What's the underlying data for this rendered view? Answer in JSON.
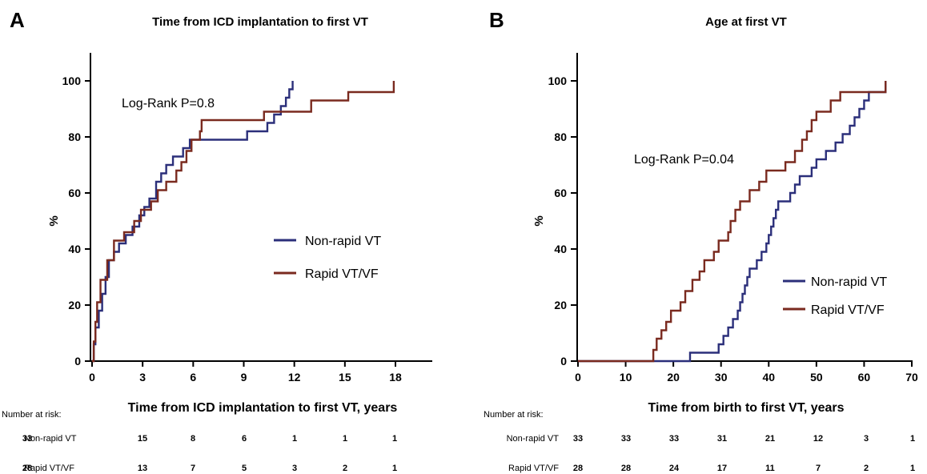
{
  "chart_data": [
    {
      "type": "line",
      "panel_label": "A",
      "title": "Time from ICD implantation to first VT",
      "xlabel": "Time from ICD implantation to first VT, years",
      "ylabel": "%",
      "xlim": [
        0,
        18
      ],
      "ylim": [
        0,
        100
      ],
      "xticks": [
        0,
        3,
        6,
        9,
        12,
        15,
        18
      ],
      "yticks": [
        0,
        20,
        40,
        60,
        80,
        100
      ],
      "grid": false,
      "legend_position": "center-right",
      "annotation": "Log-Rank P=0.8",
      "series": [
        {
          "name": "Non-rapid VT",
          "color": "#2b2f7a",
          "points": [
            [
              0,
              0
            ],
            [
              0.1,
              6
            ],
            [
              0.2,
              12
            ],
            [
              0.4,
              18
            ],
            [
              0.6,
              24
            ],
            [
              0.8,
              30
            ],
            [
              1.0,
              36
            ],
            [
              1.3,
              39
            ],
            [
              1.6,
              42
            ],
            [
              2.0,
              45
            ],
            [
              2.4,
              48
            ],
            [
              2.8,
              52
            ],
            [
              3.1,
              55
            ],
            [
              3.4,
              58
            ],
            [
              3.8,
              64
            ],
            [
              4.1,
              67
            ],
            [
              4.4,
              70
            ],
            [
              4.8,
              73
            ],
            [
              5.4,
              76
            ],
            [
              5.8,
              79
            ],
            [
              6.6,
              79
            ],
            [
              9.2,
              82
            ],
            [
              10.4,
              85
            ],
            [
              10.8,
              88
            ],
            [
              11.2,
              91
            ],
            [
              11.5,
              94
            ],
            [
              11.7,
              97
            ],
            [
              11.9,
              100
            ]
          ]
        },
        {
          "name": "Rapid VT/VF",
          "color": "#7a2a1f",
          "points": [
            [
              0,
              0
            ],
            [
              0.1,
              7
            ],
            [
              0.2,
              14
            ],
            [
              0.3,
              21
            ],
            [
              0.5,
              29
            ],
            [
              0.9,
              36
            ],
            [
              1.3,
              43
            ],
            [
              1.9,
              46
            ],
            [
              2.5,
              50
            ],
            [
              2.9,
              54
            ],
            [
              3.5,
              57
            ],
            [
              3.9,
              61
            ],
            [
              4.4,
              64
            ],
            [
              5.0,
              68
            ],
            [
              5.3,
              71
            ],
            [
              5.6,
              75
            ],
            [
              5.9,
              79
            ],
            [
              6.4,
              82
            ],
            [
              6.5,
              86
            ],
            [
              9.2,
              86
            ],
            [
              10.2,
              89
            ],
            [
              13.0,
              93
            ],
            [
              15.2,
              96
            ],
            [
              17.9,
              100
            ]
          ]
        }
      ],
      "risk_table": {
        "header": "Number at risk:",
        "times": [
          0,
          3,
          6,
          9,
          12,
          15,
          18
        ],
        "rows": [
          {
            "name": "Non-rapid VT",
            "values": [
              "33",
              "15",
              "8",
              "6",
              "1",
              "1",
              "1"
            ]
          },
          {
            "name": "Rapid VT/VF",
            "values": [
              "28",
              "13",
              "7",
              "5",
              "3",
              "2",
              "1"
            ]
          }
        ]
      }
    },
    {
      "type": "line",
      "panel_label": "B",
      "title": "Age at first VT",
      "xlabel": "Time from birth to first VT, years",
      "ylabel": "%",
      "xlim": [
        0,
        70
      ],
      "ylim": [
        0,
        100
      ],
      "xticks": [
        0,
        10,
        20,
        30,
        40,
        50,
        60,
        70
      ],
      "yticks": [
        0,
        20,
        40,
        60,
        80,
        100
      ],
      "grid": false,
      "legend_position": "center-right",
      "annotation": "Log-Rank P=0.04",
      "series": [
        {
          "name": "Non-rapid VT",
          "color": "#2b2f7a",
          "points": [
            [
              0,
              0
            ],
            [
              23.5,
              3
            ],
            [
              29.5,
              6
            ],
            [
              30.5,
              9
            ],
            [
              31.5,
              12
            ],
            [
              32.5,
              15
            ],
            [
              33.5,
              18
            ],
            [
              34.0,
              21
            ],
            [
              34.5,
              24
            ],
            [
              35.0,
              27
            ],
            [
              35.5,
              30
            ],
            [
              36.0,
              33
            ],
            [
              37.5,
              36
            ],
            [
              38.5,
              39
            ],
            [
              39.5,
              42
            ],
            [
              40.0,
              45
            ],
            [
              40.5,
              48
            ],
            [
              41.0,
              51
            ],
            [
              41.5,
              54
            ],
            [
              42.0,
              57
            ],
            [
              44.5,
              60
            ],
            [
              45.5,
              63
            ],
            [
              46.5,
              66
            ],
            [
              49.0,
              69
            ],
            [
              50.0,
              72
            ],
            [
              52.0,
              75
            ],
            [
              54.0,
              78
            ],
            [
              55.5,
              81
            ],
            [
              57.0,
              84
            ],
            [
              58.0,
              87
            ],
            [
              59.0,
              90
            ],
            [
              60.0,
              93
            ],
            [
              61.0,
              96
            ],
            [
              64.5,
              100
            ]
          ]
        },
        {
          "name": "Rapid VT/VF",
          "color": "#7a2a1f",
          "points": [
            [
              0,
              0
            ],
            [
              15.8,
              4
            ],
            [
              16.5,
              8
            ],
            [
              17.5,
              11
            ],
            [
              18.5,
              14
            ],
            [
              19.5,
              18
            ],
            [
              21.5,
              21
            ],
            [
              22.5,
              25
            ],
            [
              24.0,
              29
            ],
            [
              25.5,
              32
            ],
            [
              26.5,
              36
            ],
            [
              28.5,
              39
            ],
            [
              29.5,
              43
            ],
            [
              31.5,
              46
            ],
            [
              32.0,
              50
            ],
            [
              33.0,
              54
            ],
            [
              34.0,
              57
            ],
            [
              36.0,
              61
            ],
            [
              38.0,
              64
            ],
            [
              39.5,
              68
            ],
            [
              43.5,
              71
            ],
            [
              45.5,
              75
            ],
            [
              47.0,
              79
            ],
            [
              48.0,
              82
            ],
            [
              49.0,
              86
            ],
            [
              50.0,
              89
            ],
            [
              53.0,
              93
            ],
            [
              55.0,
              96
            ],
            [
              64.5,
              100
            ]
          ]
        }
      ],
      "risk_table": {
        "header": "Number at risk:",
        "times": [
          0,
          10,
          20,
          30,
          40,
          50,
          60,
          70
        ],
        "rows": [
          {
            "name": "Non-rapid VT",
            "values": [
              "33",
              "33",
              "33",
              "31",
              "21",
              "12",
              "3",
              "1"
            ]
          },
          {
            "name": "Rapid VT/VF",
            "values": [
              "28",
              "28",
              "24",
              "17",
              "11",
              "7",
              "2",
              "1"
            ]
          }
        ]
      }
    }
  ]
}
